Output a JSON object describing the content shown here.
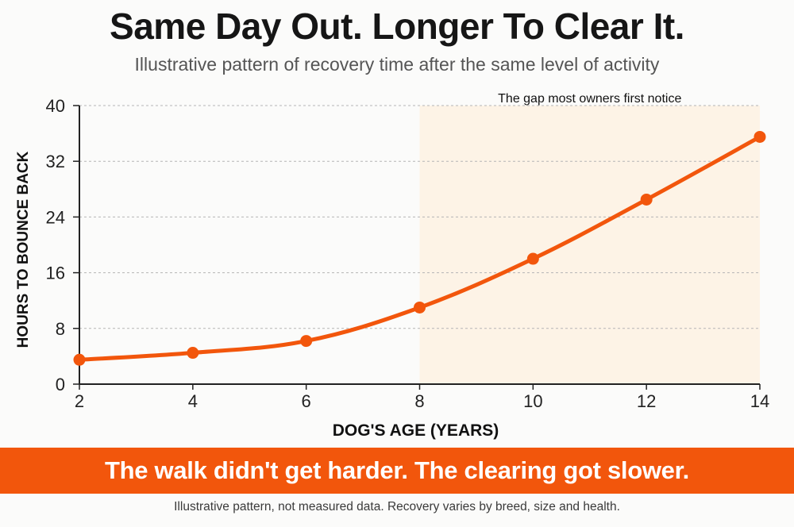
{
  "title": "Same Day Out. Longer To Clear It.",
  "subtitle": "Illustrative pattern of recovery time after the same level of activity",
  "banner": "The walk didn't get harder. The clearing got slower.",
  "footnote": "Illustrative pattern, not measured data. Recovery varies by breed, size and health.",
  "colors": {
    "line": "#f2560c",
    "highlight": "#fdf3e6",
    "banner": "#f2560c"
  },
  "chart_data": {
    "type": "line",
    "xlabel": "DOG'S AGE (YEARS)",
    "ylabel": "HOURS TO BOUNCE BACK",
    "xlim": [
      2,
      14
    ],
    "ylim": [
      0,
      40
    ],
    "xticks": [
      2,
      4,
      6,
      8,
      10,
      12,
      14
    ],
    "yticks": [
      0,
      8,
      16,
      24,
      32,
      40
    ],
    "grid": "horizontal dashed",
    "series": [
      {
        "x": [
          2,
          4,
          6,
          8,
          10,
          12,
          14
        ],
        "values": [
          3.5,
          4.5,
          6.2,
          11,
          18,
          26.5,
          35.5
        ]
      }
    ],
    "highlight_region": {
      "x_from": 8,
      "x_to": 14,
      "label": "The gap most owners first notice"
    }
  }
}
